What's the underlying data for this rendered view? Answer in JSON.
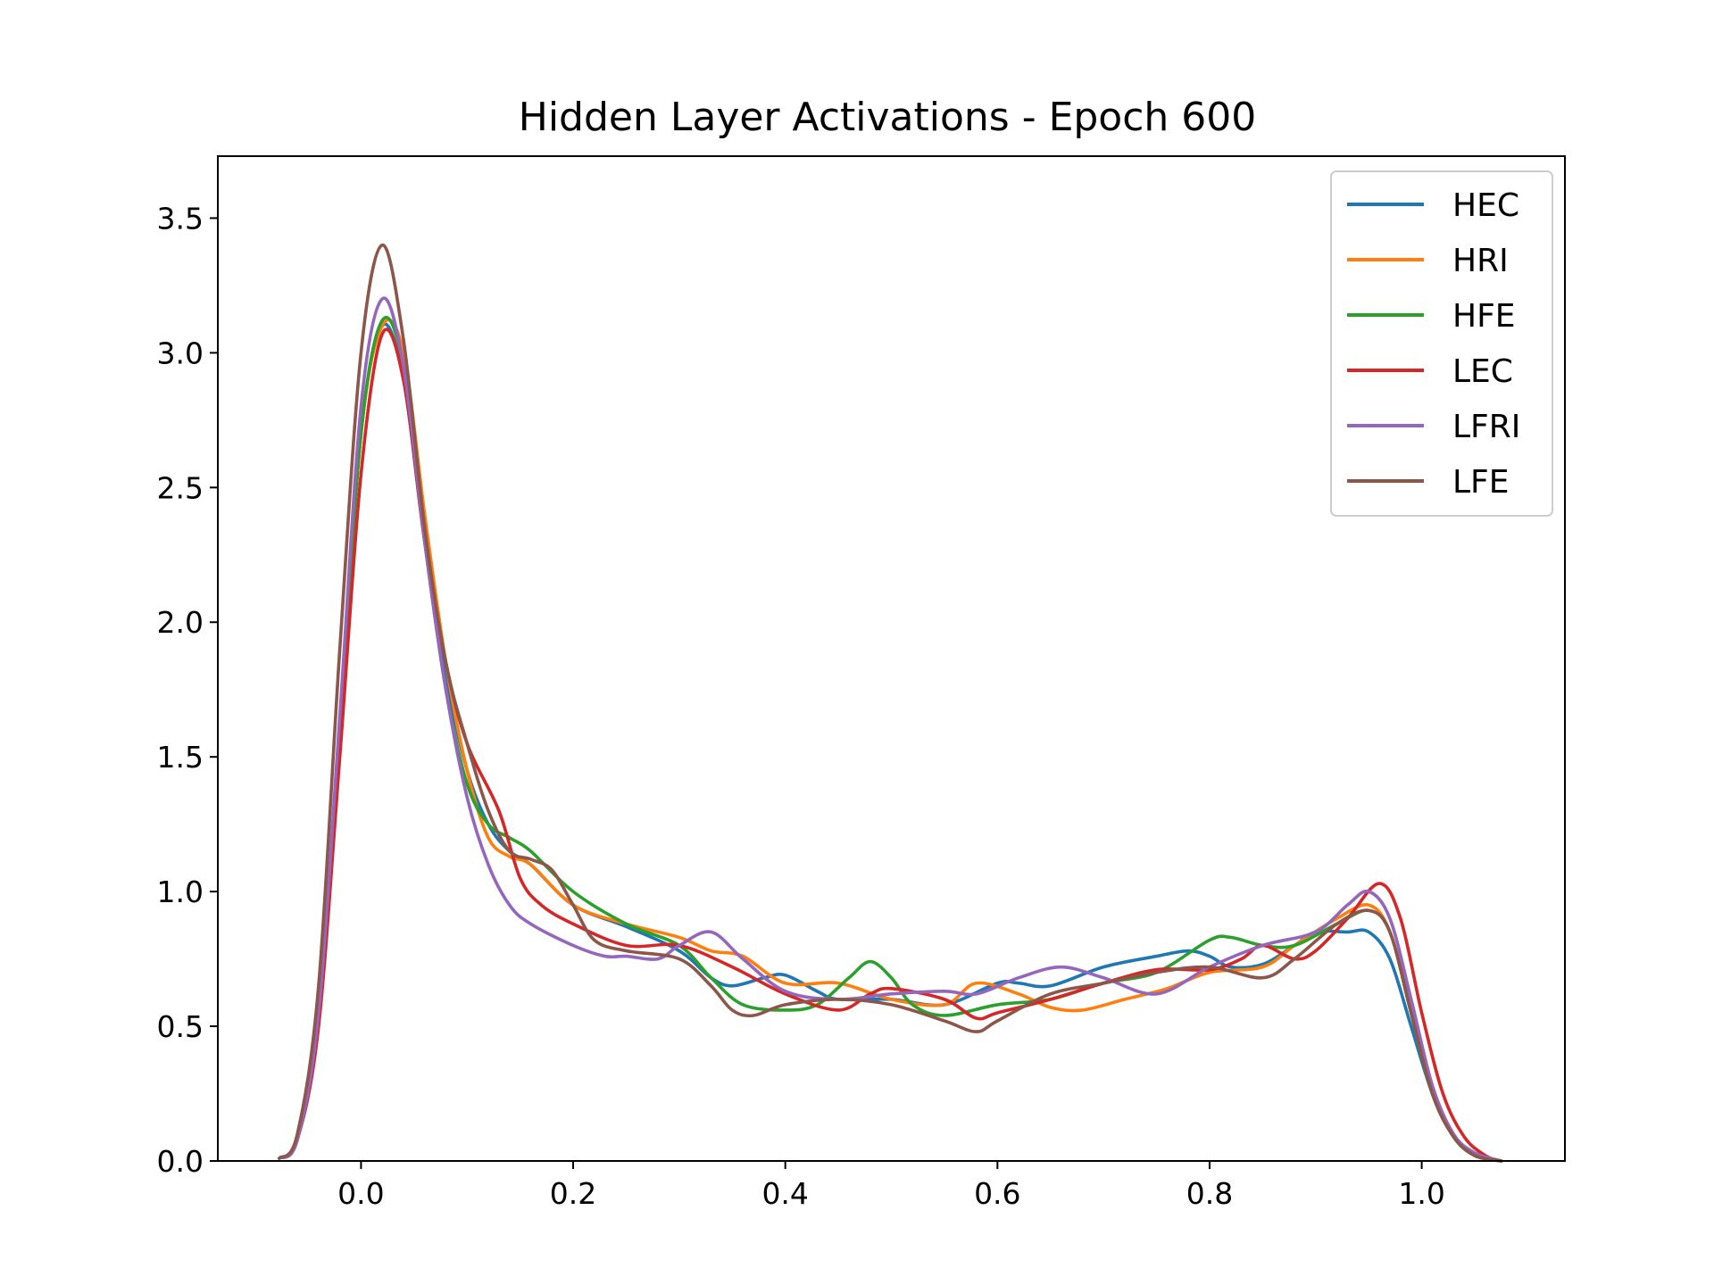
{
  "chart_data": {
    "type": "line",
    "title": "Hidden Layer Activations - Epoch 600",
    "xlabel": "",
    "ylabel": "",
    "xlim": [
      -0.135,
      1.135
    ],
    "ylim": [
      0,
      3.73
    ],
    "xticks": [
      0.0,
      0.2,
      0.4,
      0.6,
      0.8,
      1.0
    ],
    "xtick_labels": [
      "0.0",
      "0.2",
      "0.4",
      "0.6",
      "0.8",
      "1.0"
    ],
    "yticks": [
      0.0,
      0.5,
      1.0,
      1.5,
      2.0,
      2.5,
      3.0,
      3.5
    ],
    "ytick_labels": [
      "0.0",
      "0.5",
      "1.0",
      "1.5",
      "2.0",
      "2.5",
      "3.0",
      "3.5"
    ],
    "grid": false,
    "legend_position": "top-right",
    "series": [
      {
        "name": "HEC",
        "color": "#1f77b4",
        "x": [
          -0.077,
          -0.06,
          -0.04,
          -0.02,
          0.0,
          0.02,
          0.04,
          0.06,
          0.08,
          0.1,
          0.12,
          0.14,
          0.16,
          0.2,
          0.25,
          0.3,
          0.33,
          0.35,
          0.38,
          0.4,
          0.43,
          0.45,
          0.5,
          0.55,
          0.6,
          0.62,
          0.65,
          0.7,
          0.75,
          0.78,
          0.8,
          0.82,
          0.85,
          0.88,
          0.9,
          0.93,
          0.95,
          0.97,
          0.99,
          1.01,
          1.03,
          1.05,
          1.075
        ],
        "y": [
          0.01,
          0.08,
          0.55,
          1.6,
          2.7,
          3.1,
          2.9,
          2.3,
          1.8,
          1.45,
          1.25,
          1.15,
          1.1,
          0.95,
          0.87,
          0.78,
          0.68,
          0.65,
          0.68,
          0.69,
          0.63,
          0.6,
          0.6,
          0.58,
          0.66,
          0.66,
          0.65,
          0.72,
          0.76,
          0.78,
          0.76,
          0.72,
          0.73,
          0.8,
          0.85,
          0.85,
          0.85,
          0.75,
          0.5,
          0.25,
          0.09,
          0.02,
          0.0
        ]
      },
      {
        "name": "HRI",
        "color": "#ff7f0e",
        "x": [
          -0.077,
          -0.06,
          -0.04,
          -0.02,
          0.0,
          0.02,
          0.04,
          0.06,
          0.08,
          0.1,
          0.12,
          0.14,
          0.16,
          0.2,
          0.25,
          0.3,
          0.33,
          0.36,
          0.4,
          0.45,
          0.5,
          0.55,
          0.58,
          0.62,
          0.65,
          0.68,
          0.72,
          0.76,
          0.8,
          0.85,
          0.88,
          0.92,
          0.95,
          0.97,
          0.99,
          1.01,
          1.03,
          1.05,
          1.075
        ],
        "y": [
          0.01,
          0.08,
          0.55,
          1.6,
          2.7,
          3.1,
          3.0,
          2.4,
          1.85,
          1.45,
          1.2,
          1.13,
          1.1,
          0.95,
          0.88,
          0.83,
          0.78,
          0.76,
          0.66,
          0.66,
          0.6,
          0.58,
          0.66,
          0.62,
          0.57,
          0.56,
          0.6,
          0.64,
          0.7,
          0.72,
          0.8,
          0.9,
          0.95,
          0.85,
          0.55,
          0.25,
          0.09,
          0.02,
          0.0
        ]
      },
      {
        "name": "HFE",
        "color": "#2ca02c",
        "x": [
          -0.077,
          -0.06,
          -0.04,
          -0.02,
          0.0,
          0.02,
          0.04,
          0.06,
          0.08,
          0.1,
          0.12,
          0.14,
          0.16,
          0.2,
          0.25,
          0.3,
          0.33,
          0.36,
          0.4,
          0.43,
          0.46,
          0.48,
          0.5,
          0.52,
          0.55,
          0.6,
          0.65,
          0.7,
          0.75,
          0.8,
          0.82,
          0.85,
          0.88,
          0.92,
          0.95,
          0.97,
          0.99,
          1.01,
          1.03,
          1.05,
          1.075
        ],
        "y": [
          0.01,
          0.08,
          0.55,
          1.6,
          2.7,
          3.12,
          2.95,
          2.3,
          1.75,
          1.4,
          1.25,
          1.2,
          1.15,
          1.0,
          0.88,
          0.8,
          0.68,
          0.58,
          0.56,
          0.58,
          0.68,
          0.74,
          0.68,
          0.58,
          0.54,
          0.58,
          0.6,
          0.66,
          0.7,
          0.82,
          0.83,
          0.8,
          0.8,
          0.88,
          0.93,
          0.85,
          0.55,
          0.25,
          0.09,
          0.02,
          0.0
        ]
      },
      {
        "name": "LEC",
        "color": "#d62728",
        "x": [
          -0.077,
          -0.06,
          -0.04,
          -0.02,
          0.0,
          0.02,
          0.04,
          0.06,
          0.08,
          0.1,
          0.13,
          0.15,
          0.17,
          0.2,
          0.25,
          0.3,
          0.35,
          0.4,
          0.45,
          0.48,
          0.5,
          0.55,
          0.58,
          0.6,
          0.65,
          0.7,
          0.75,
          0.8,
          0.83,
          0.85,
          0.88,
          0.9,
          0.93,
          0.96,
          0.98,
          1.0,
          1.02,
          1.04,
          1.06,
          1.075
        ],
        "y": [
          0.01,
          0.08,
          0.5,
          1.5,
          2.55,
          3.07,
          2.9,
          2.3,
          1.85,
          1.55,
          1.3,
          1.05,
          0.95,
          0.88,
          0.8,
          0.8,
          0.72,
          0.62,
          0.56,
          0.62,
          0.64,
          0.6,
          0.53,
          0.55,
          0.6,
          0.66,
          0.71,
          0.71,
          0.75,
          0.8,
          0.75,
          0.78,
          0.9,
          1.03,
          0.9,
          0.55,
          0.25,
          0.09,
          0.02,
          0.0
        ]
      },
      {
        "name": "LFRI",
        "color": "#9467bd",
        "x": [
          -0.077,
          -0.06,
          -0.04,
          -0.02,
          0.0,
          0.02,
          0.04,
          0.06,
          0.08,
          0.1,
          0.12,
          0.14,
          0.16,
          0.2,
          0.23,
          0.25,
          0.28,
          0.3,
          0.33,
          0.36,
          0.4,
          0.45,
          0.5,
          0.55,
          0.58,
          0.62,
          0.66,
          0.7,
          0.75,
          0.8,
          0.85,
          0.9,
          0.93,
          0.95,
          0.97,
          0.99,
          1.01,
          1.03,
          1.05,
          1.075
        ],
        "y": [
          0.01,
          0.08,
          0.55,
          1.65,
          2.8,
          3.2,
          2.95,
          2.3,
          1.75,
          1.35,
          1.1,
          0.95,
          0.88,
          0.8,
          0.76,
          0.76,
          0.75,
          0.8,
          0.85,
          0.75,
          0.63,
          0.6,
          0.62,
          0.63,
          0.62,
          0.68,
          0.72,
          0.68,
          0.62,
          0.72,
          0.8,
          0.85,
          0.95,
          1.0,
          0.9,
          0.6,
          0.28,
          0.1,
          0.03,
          0.0
        ]
      },
      {
        "name": "LFE",
        "color": "#8c564b",
        "x": [
          -0.077,
          -0.06,
          -0.04,
          -0.02,
          0.0,
          0.02,
          0.04,
          0.06,
          0.08,
          0.1,
          0.12,
          0.14,
          0.16,
          0.18,
          0.2,
          0.22,
          0.25,
          0.3,
          0.33,
          0.35,
          0.37,
          0.4,
          0.45,
          0.5,
          0.55,
          0.58,
          0.6,
          0.65,
          0.7,
          0.75,
          0.8,
          0.85,
          0.88,
          0.92,
          0.95,
          0.97,
          0.99,
          1.01,
          1.03,
          1.05,
          1.075
        ],
        "y": [
          0.01,
          0.1,
          0.65,
          1.9,
          3.0,
          3.4,
          3.05,
          2.35,
          1.85,
          1.55,
          1.3,
          1.15,
          1.12,
          1.08,
          0.95,
          0.82,
          0.78,
          0.75,
          0.65,
          0.56,
          0.54,
          0.58,
          0.6,
          0.58,
          0.52,
          0.48,
          0.52,
          0.62,
          0.66,
          0.7,
          0.72,
          0.68,
          0.75,
          0.88,
          0.93,
          0.85,
          0.55,
          0.25,
          0.09,
          0.02,
          0.0
        ]
      }
    ]
  }
}
